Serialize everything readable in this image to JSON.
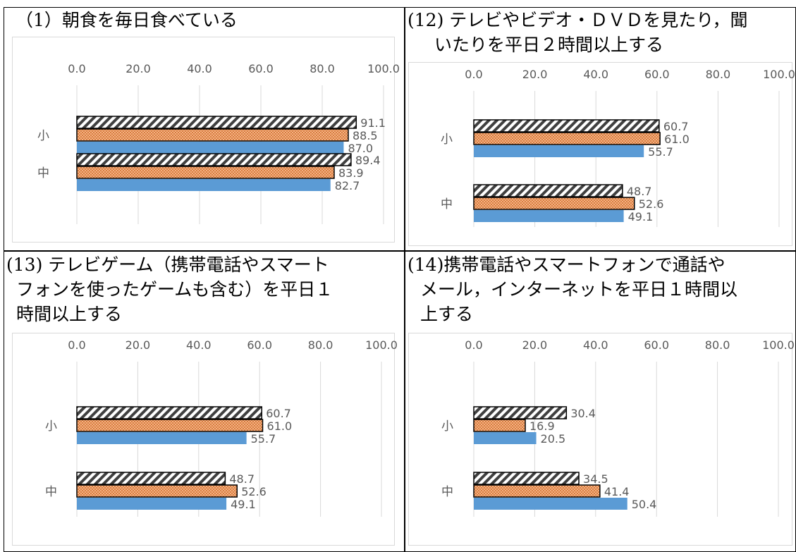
{
  "panels": [
    {
      "title_lines": [
        "（1）朝食を毎日食べている"
      ]
    },
    {
      "title_lines": [
        "(12) テレビやビデオ・ＤＶＤを見たり，聞",
        "いたりを平日２時間以上する"
      ]
    },
    {
      "title_lines": [
        "(13) テレビゲーム（携帯電話やスマート",
        "フォンを使ったゲームも含む）を平日１",
        "時間以上する"
      ]
    },
    {
      "title_lines": [
        "(14)携帯電話やスマートフォンで通話や",
        "メール，インターネットを平日１時間以",
        "上する"
      ]
    }
  ],
  "colors": {
    "series1_stroke": "#404040",
    "series2_fill": "#f4b183",
    "series2_stroke": "#c55a11",
    "series3_fill": "#5b9bd5",
    "grid": "#d9d9d9",
    "text": "#595959"
  },
  "chart_data": [
    {
      "type": "bar",
      "orientation": "horizontal",
      "categories": [
        "小",
        "中"
      ],
      "xlim": [
        0,
        100
      ],
      "ticks": [
        "0.0",
        "20.0",
        "40.0",
        "60.0",
        "80.0",
        "100.0"
      ],
      "series": [
        {
          "values": [
            91.1,
            89.4
          ],
          "labels": [
            "91.1",
            "89.4"
          ],
          "pattern": "diagonal-hatch"
        },
        {
          "values": [
            88.5,
            83.9
          ],
          "labels": [
            "88.5",
            "83.9"
          ],
          "pattern": "orange-dots"
        },
        {
          "values": [
            87.0,
            82.7
          ],
          "labels": [
            "87.0",
            "82.7"
          ],
          "pattern": "solid-blue"
        }
      ]
    },
    {
      "type": "bar",
      "orientation": "horizontal",
      "categories": [
        "小",
        "中"
      ],
      "xlim": [
        0,
        100
      ],
      "ticks": [
        "0.0",
        "20.0",
        "40.0",
        "60.0",
        "80.0",
        "100.0"
      ],
      "series": [
        {
          "values": [
            60.7,
            48.7
          ],
          "labels": [
            "60.7",
            "48.7"
          ],
          "pattern": "diagonal-hatch"
        },
        {
          "values": [
            61.0,
            52.6
          ],
          "labels": [
            "61.0",
            "52.6"
          ],
          "pattern": "orange-dots"
        },
        {
          "values": [
            55.7,
            49.1
          ],
          "labels": [
            "55.7",
            "49.1"
          ],
          "pattern": "solid-blue"
        }
      ]
    },
    {
      "type": "bar",
      "orientation": "horizontal",
      "categories": [
        "小",
        "中"
      ],
      "xlim": [
        0,
        100
      ],
      "ticks": [
        "0.0",
        "20.0",
        "40.0",
        "60.0",
        "80.0",
        "100.0"
      ],
      "series": [
        {
          "values": [
            60.7,
            48.7
          ],
          "labels": [
            "60.7",
            "48.7"
          ],
          "pattern": "diagonal-hatch"
        },
        {
          "values": [
            61.0,
            52.6
          ],
          "labels": [
            "61.0",
            "52.6"
          ],
          "pattern": "orange-dots"
        },
        {
          "values": [
            55.7,
            49.1
          ],
          "labels": [
            "55.7",
            "49.1"
          ],
          "pattern": "solid-blue"
        }
      ]
    },
    {
      "type": "bar",
      "orientation": "horizontal",
      "categories": [
        "小",
        "中"
      ],
      "xlim": [
        0,
        100
      ],
      "ticks": [
        "0.0",
        "20.0",
        "40.0",
        "60.0",
        "80.0",
        "100.0"
      ],
      "series": [
        {
          "values": [
            30.4,
            34.5
          ],
          "labels": [
            "30.4",
            "34.5"
          ],
          "pattern": "diagonal-hatch"
        },
        {
          "values": [
            16.9,
            41.4
          ],
          "labels": [
            "16.9",
            "41.4"
          ],
          "pattern": "orange-dots"
        },
        {
          "values": [
            20.5,
            50.4
          ],
          "labels": [
            "20.5",
            "50.4"
          ],
          "pattern": "solid-blue"
        }
      ]
    }
  ]
}
